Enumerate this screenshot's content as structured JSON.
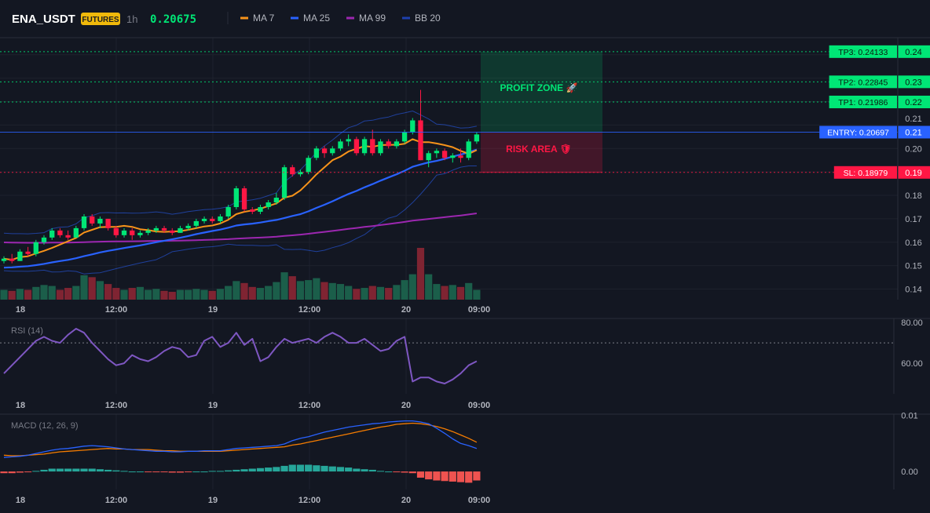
{
  "header": {
    "symbol": "ENA_USDT",
    "badge": "FUTURES",
    "interval": "1h",
    "price": "0.20675",
    "legend": [
      {
        "label": "MA 7",
        "color": "#f7931a"
      },
      {
        "label": "MA 25",
        "color": "#2962ff"
      },
      {
        "label": "MA 99",
        "color": "#9c27b0"
      },
      {
        "label": "BB 20",
        "color": "#1e40af"
      }
    ]
  },
  "colors": {
    "up": "#00e676",
    "down": "#ff1744",
    "vol_up": "#1b5e4a",
    "vol_down": "#7f2432",
    "entry": "#2962ff",
    "sl": "#ff1744",
    "tp": "#00e676",
    "rsi": "#7e57c2",
    "macd": "#2962ff",
    "signal": "#f57c00",
    "hist_pos": "#26a69a",
    "hist_neg": "#ef5350"
  },
  "levels": {
    "tp3": {
      "label": "TP3: 0.24133",
      "value": 0.24133
    },
    "tp2": {
      "label": "TP2: 0.22845",
      "value": 0.22845
    },
    "tp1": {
      "label": "TP1: 0.21986",
      "value": 0.21986
    },
    "entry": {
      "label": "ENTRY: 0.20697",
      "value": 0.20697
    },
    "sl": {
      "label": "SL: 0.18979",
      "value": 0.18979
    }
  },
  "zones": {
    "profit_label": "PROFIT ZONE 🚀",
    "risk_label": "RISK AREA 🛡",
    "profit_range": [
      0.20697,
      0.24133
    ],
    "risk_range": [
      0.18979,
      0.20697
    ]
  },
  "chart_data": [
    {
      "type": "candlestick",
      "title": "ENA_USDT",
      "x_tick_labels": [
        "18",
        "12:00",
        "19",
        "12:00",
        "20",
        "09:00"
      ],
      "y_tick_labels": [
        "0.24",
        "0.23",
        "0.22",
        "0.21",
        "0.20",
        "0.19",
        "0.18",
        "0.17",
        "0.16",
        "0.15",
        "0.14"
      ],
      "ylim": [
        0.1355,
        0.2473
      ],
      "candles": [
        [
          0.152,
          0.154,
          0.151,
          0.153,
          1
        ],
        [
          0.153,
          0.155,
          0.151,
          0.152,
          0.9
        ],
        [
          0.152,
          0.157,
          0.152,
          0.156,
          1.1
        ],
        [
          0.156,
          0.158,
          0.154,
          0.155,
          1
        ],
        [
          0.155,
          0.161,
          0.154,
          0.16,
          1.3
        ],
        [
          0.16,
          0.163,
          0.159,
          0.162,
          1.5
        ],
        [
          0.162,
          0.166,
          0.161,
          0.165,
          1.4
        ],
        [
          0.165,
          0.166,
          0.162,
          0.163,
          1
        ],
        [
          0.163,
          0.165,
          0.161,
          0.162,
          1.2
        ],
        [
          0.162,
          0.167,
          0.162,
          0.166,
          1.4
        ],
        [
          0.166,
          0.172,
          0.165,
          0.171,
          2.5
        ],
        [
          0.171,
          0.172,
          0.167,
          0.168,
          2.3
        ],
        [
          0.168,
          0.171,
          0.166,
          0.17,
          1.9
        ],
        [
          0.17,
          0.17,
          0.165,
          0.166,
          1.6
        ],
        [
          0.166,
          0.167,
          0.162,
          0.163,
          1.2
        ],
        [
          0.163,
          0.166,
          0.162,
          0.165,
          1
        ],
        [
          0.165,
          0.166,
          0.161,
          0.163,
          1.2
        ],
        [
          0.163,
          0.165,
          0.162,
          0.164,
          1.3
        ],
        [
          0.164,
          0.166,
          0.163,
          0.165,
          1
        ],
        [
          0.165,
          0.167,
          0.164,
          0.166,
          1.1
        ],
        [
          0.166,
          0.167,
          0.164,
          0.165,
          0.9
        ],
        [
          0.165,
          0.166,
          0.163,
          0.164,
          0.8
        ],
        [
          0.164,
          0.167,
          0.164,
          0.166,
          1
        ],
        [
          0.166,
          0.168,
          0.165,
          0.167,
          1
        ],
        [
          0.167,
          0.17,
          0.166,
          0.169,
          1.1
        ],
        [
          0.169,
          0.171,
          0.168,
          0.17,
          1
        ],
        [
          0.17,
          0.171,
          0.168,
          0.169,
          0.9
        ],
        [
          0.169,
          0.172,
          0.168,
          0.171,
          1.1
        ],
        [
          0.171,
          0.176,
          0.17,
          0.175,
          1.4
        ],
        [
          0.175,
          0.184,
          0.174,
          0.183,
          1.9
        ],
        [
          0.183,
          0.184,
          0.173,
          0.174,
          1.7
        ],
        [
          0.174,
          0.175,
          0.172,
          0.173,
          1.3
        ],
        [
          0.173,
          0.176,
          0.172,
          0.175,
          1.2
        ],
        [
          0.175,
          0.178,
          0.174,
          0.177,
          1.4
        ],
        [
          0.177,
          0.181,
          0.176,
          0.179,
          1.8
        ],
        [
          0.179,
          0.193,
          0.178,
          0.192,
          2.8
        ],
        [
          0.192,
          0.193,
          0.188,
          0.189,
          2.4
        ],
        [
          0.189,
          0.191,
          0.188,
          0.19,
          1.9
        ],
        [
          0.19,
          0.197,
          0.189,
          0.196,
          2
        ],
        [
          0.196,
          0.201,
          0.195,
          0.2,
          2.2
        ],
        [
          0.2,
          0.201,
          0.196,
          0.198,
          1.8
        ],
        [
          0.198,
          0.201,
          0.197,
          0.2,
          1.7
        ],
        [
          0.2,
          0.204,
          0.199,
          0.203,
          1.6
        ],
        [
          0.203,
          0.206,
          0.201,
          0.204,
          1.4
        ],
        [
          0.204,
          0.205,
          0.197,
          0.198,
          1.1
        ],
        [
          0.198,
          0.205,
          0.197,
          0.204,
          1.2
        ],
        [
          0.204,
          0.208,
          0.197,
          0.198,
          1.4
        ],
        [
          0.198,
          0.204,
          0.197,
          0.203,
          1.3
        ],
        [
          0.203,
          0.204,
          0.2,
          0.201,
          1.2
        ],
        [
          0.201,
          0.204,
          0.2,
          0.203,
          1.5
        ],
        [
          0.203,
          0.208,
          0.202,
          0.207,
          2
        ],
        [
          0.207,
          0.213,
          0.206,
          0.212,
          2.6
        ],
        [
          0.212,
          0.225,
          0.195,
          0.195,
          5.3
        ],
        [
          0.195,
          0.199,
          0.192,
          0.198,
          2.6
        ],
        [
          0.198,
          0.2,
          0.196,
          0.199,
          1.6
        ],
        [
          0.199,
          0.2,
          0.195,
          0.196,
          1.4
        ],
        [
          0.196,
          0.198,
          0.194,
          0.197,
          1.5
        ],
        [
          0.197,
          0.2,
          0.194,
          0.196,
          1.3
        ],
        [
          0.196,
          0.204,
          0.195,
          0.203,
          1.7
        ],
        [
          0.203,
          0.207,
          0.202,
          0.206,
          1
        ]
      ]
    },
    {
      "type": "line",
      "title": "RSI (14)",
      "y_tick_labels": [
        "80.00",
        "60.00"
      ],
      "ylim": [
        45,
        82
      ],
      "values": [
        55,
        59,
        63,
        67,
        71,
        73,
        71,
        70,
        74,
        77,
        75,
        70,
        66,
        62,
        59,
        60,
        64,
        62,
        61,
        63,
        66,
        68,
        67,
        63,
        64,
        71,
        73,
        68,
        70,
        75,
        69,
        72,
        61,
        63,
        68,
        72,
        70,
        71,
        72,
        70,
        73,
        75,
        73,
        70,
        70,
        72,
        69,
        66,
        67,
        71,
        73,
        51,
        53,
        53,
        51,
        50,
        52,
        55,
        59,
        61
      ]
    },
    {
      "type": "line",
      "title": "MACD (12, 26, 9)",
      "y_tick_labels": [
        "0.01",
        "0.00"
      ],
      "ylim": [
        -0.0032,
        0.0102
      ],
      "series": [
        {
          "values": [
            0.0025,
            0.0026,
            0.0027,
            0.0029,
            0.0032,
            0.0035,
            0.0038,
            0.004,
            0.0041,
            0.0043,
            0.0045,
            0.0046,
            0.0045,
            0.0044,
            0.0042,
            0.004,
            0.0039,
            0.0038,
            0.0037,
            0.0036,
            0.0036,
            0.0035,
            0.0035,
            0.0036,
            0.0036,
            0.0037,
            0.0037,
            0.0037,
            0.0039,
            0.0041,
            0.0042,
            0.0043,
            0.0044,
            0.0045,
            0.0046,
            0.0049,
            0.0055,
            0.0059,
            0.0062,
            0.0066,
            0.007,
            0.0073,
            0.0076,
            0.0079,
            0.0081,
            0.0083,
            0.0085,
            0.0086,
            0.0088,
            0.0089,
            0.009,
            0.009,
            0.0088,
            0.0085,
            0.0077,
            0.0068,
            0.0058,
            0.005,
            0.0046,
            0.0041
          ]
        },
        {
          "values": [
            0.0029,
            0.0028,
            0.0028,
            0.0029,
            0.003,
            0.0031,
            0.0033,
            0.0035,
            0.0036,
            0.0037,
            0.0038,
            0.0039,
            0.004,
            0.0041,
            0.004,
            0.004,
            0.0039,
            0.0039,
            0.0039,
            0.0038,
            0.0037,
            0.0037,
            0.0036,
            0.0036,
            0.0036,
            0.0036,
            0.0036,
            0.0036,
            0.0037,
            0.0038,
            0.0039,
            0.004,
            0.0041,
            0.0042,
            0.0043,
            0.0044,
            0.0047,
            0.0049,
            0.0052,
            0.0055,
            0.0058,
            0.0061,
            0.0064,
            0.0067,
            0.007,
            0.0073,
            0.0076,
            0.0079,
            0.0081,
            0.0084,
            0.0085,
            0.0086,
            0.0085,
            0.0083,
            0.008,
            0.0076,
            0.0071,
            0.0065,
            0.0059,
            0.0052
          ]
        }
      ],
      "hist": [
        -0.0003,
        -0.0003,
        -0.0002,
        -0.0001,
        0.0001,
        0.0003,
        0.0005,
        0.0005,
        0.0005,
        0.0005,
        0.0005,
        0.0005,
        0.0004,
        0.0003,
        0.0002,
        0.0001,
        0,
        0,
        -0.0001,
        -0.0001,
        -0.0001,
        -0.0002,
        -0.0002,
        -0.0001,
        0,
        0,
        0.0001,
        0.0001,
        0.0002,
        0.0003,
        0.0004,
        0.0005,
        0.0006,
        0.0007,
        0.0008,
        0.001,
        0.0012,
        0.0012,
        0.0012,
        0.0011,
        0.001,
        0.0009,
        0.0008,
        0.0007,
        0.0005,
        0.0004,
        0.0003,
        0.0001,
        0,
        -0.0001,
        -0.0002,
        -0.0003,
        -0.0011,
        -0.0014,
        -0.0016,
        -0.0017,
        -0.0018,
        -0.0019,
        -0.002,
        -0.0016
      ]
    }
  ]
}
